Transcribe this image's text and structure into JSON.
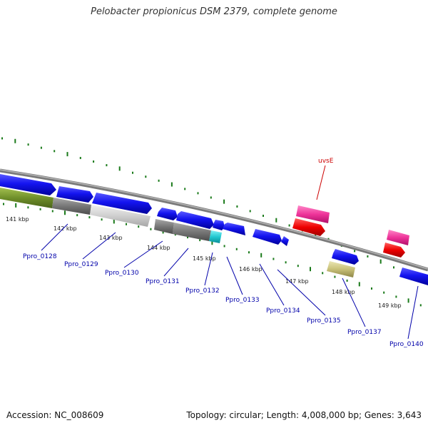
{
  "title": "Pelobacter propionicus DSM 2379, complete genome",
  "footer": {
    "accession": "Accession: NC_008609",
    "summary": "Topology: circular; Length: 4,008,000 bp; Genes: 3,643"
  },
  "ruler": {
    "unit": "kbp",
    "ticks": [
      {
        "label": "141 kbp"
      },
      {
        "label": "142 kbp"
      },
      {
        "label": "143 kbp"
      },
      {
        "label": "144 kbp"
      },
      {
        "label": "145 kbp"
      },
      {
        "label": "146 kbp"
      },
      {
        "label": "147 kbp"
      },
      {
        "label": "148 kbp"
      },
      {
        "label": "149 kbp"
      }
    ]
  },
  "gene_labels": [
    {
      "label": "Ppro_0128",
      "color": "#0000aa"
    },
    {
      "label": "Ppro_0129",
      "color": "#0000aa"
    },
    {
      "label": "Ppro_0130",
      "color": "#0000aa"
    },
    {
      "label": "Ppro_0131",
      "color": "#0000aa"
    },
    {
      "label": "Ppro_0132",
      "color": "#0000aa"
    },
    {
      "label": "Ppro_0133",
      "color": "#0000aa"
    },
    {
      "label": "Ppro_0134",
      "color": "#0000aa"
    },
    {
      "label": "Ppro_0135",
      "color": "#0000aa"
    },
    {
      "label": "Ppro_0137",
      "color": "#0000aa"
    },
    {
      "label": "Ppro_0140",
      "color": "#0000aa"
    },
    {
      "label": "uvsE",
      "color": "#cc0000"
    }
  ],
  "colors": {
    "backbone": "#909090",
    "cds": "#1414f0",
    "gene": "#6f8f2a",
    "misc": "#777777",
    "pale": "#cfcfcf",
    "cyan": "#22c8d0",
    "pink": "#ee3399",
    "red": "#ee0000",
    "khaki": "#c8c078",
    "dots": "#1a7a1a"
  }
}
